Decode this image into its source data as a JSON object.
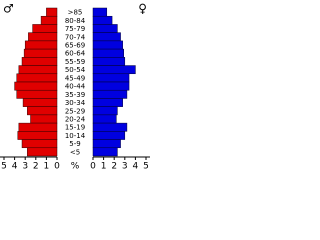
{
  "chart_data": {
    "type": "pyramid",
    "categories": [
      ">85",
      "80-84",
      "75-79",
      "70-74",
      "65-69",
      "60-64",
      "55-59",
      "50-54",
      "45-49",
      "40-44",
      "35-39",
      "30-34",
      "25-29",
      "20-24",
      "15-19",
      "10-14",
      "5-9",
      "<5"
    ],
    "series": [
      {
        "name": "♂",
        "color": "#e00000",
        "values": [
          1.0,
          1.5,
          2.3,
          2.7,
          3.0,
          3.1,
          3.3,
          3.6,
          3.8,
          4.0,
          3.8,
          3.2,
          2.8,
          2.5,
          3.6,
          3.7,
          3.3,
          2.8
        ]
      },
      {
        "name": "♀",
        "color": "#0000e0",
        "values": [
          1.3,
          1.8,
          2.3,
          2.6,
          2.8,
          2.9,
          3.0,
          4.0,
          3.4,
          3.4,
          3.2,
          2.8,
          2.3,
          2.2,
          3.2,
          3.0,
          2.6,
          2.3
        ]
      }
    ],
    "xlim": [
      0,
      5
    ],
    "xticks": [
      0,
      1,
      2,
      3,
      4,
      5
    ],
    "x_label": "%"
  }
}
